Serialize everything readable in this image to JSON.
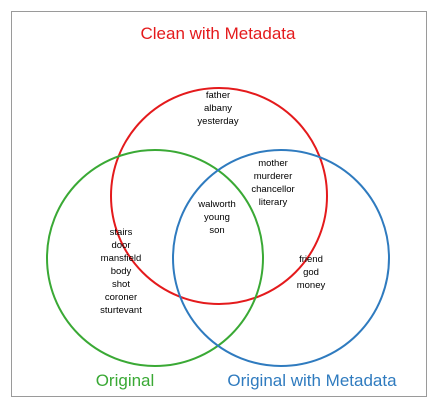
{
  "sets": {
    "clean": {
      "label": "Clean with Metadata",
      "color": "#e41a1c"
    },
    "original": {
      "label": "Original",
      "color": "#3aa935"
    },
    "original_meta": {
      "label": "Original with Metadata",
      "color": "#2f7bbf"
    }
  },
  "regions": {
    "clean_only": [
      "father",
      "albany",
      "yesterday"
    ],
    "clean_and_original_meta": [
      "mother",
      "murderer",
      "chancellor",
      "literary"
    ],
    "all_three": [
      "walworth",
      "young",
      "son"
    ],
    "original_only": [
      "stairs",
      "door",
      "mansfield",
      "body",
      "shot",
      "coroner",
      "sturtevant"
    ],
    "original_meta_only": [
      "friend",
      "god",
      "money"
    ]
  }
}
